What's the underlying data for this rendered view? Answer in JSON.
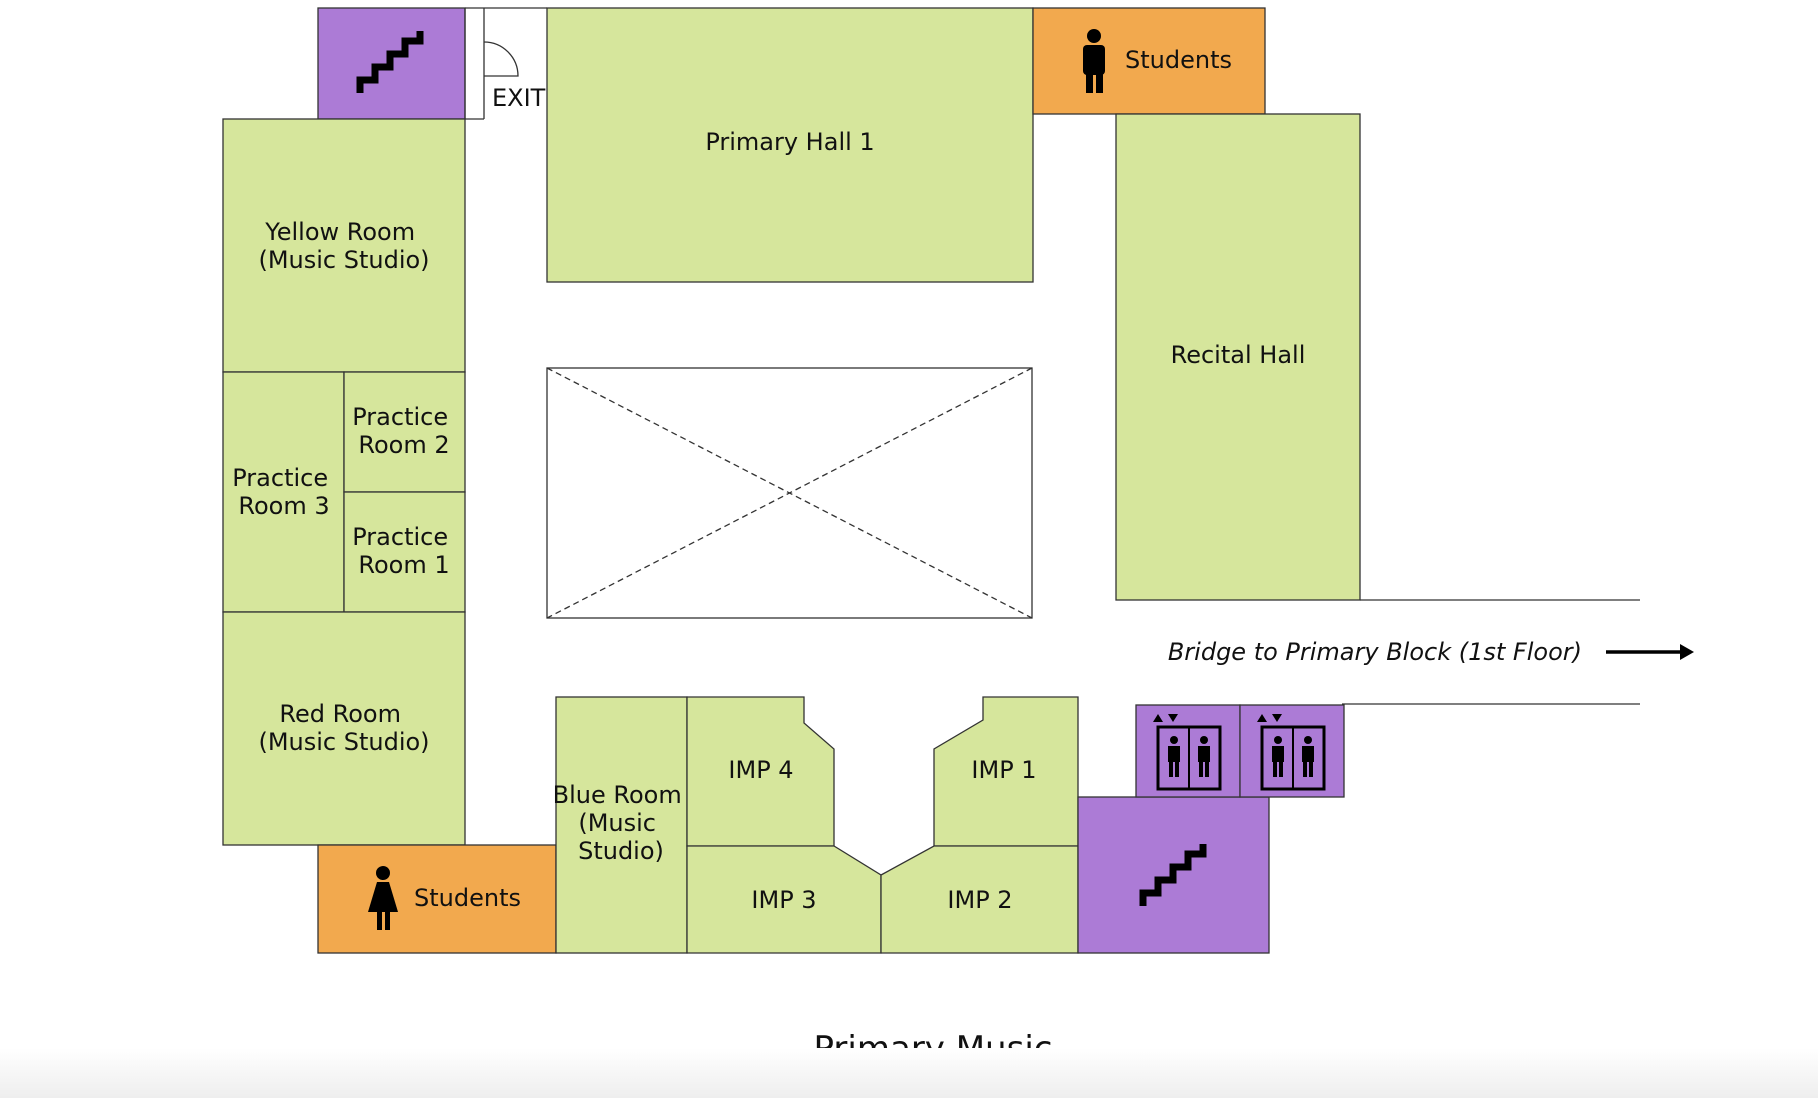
{
  "map": {
    "title": "Primary Music",
    "exit_label": "EXIT",
    "bridge_label": "Bridge to Primary Block (1st Floor)",
    "rooms": {
      "primary_hall_1": "Primary Hall 1",
      "recital_hall": "Recital Hall",
      "yellow_room": [
        "Yellow Room",
        "(Music Studio)"
      ],
      "practice_room_2": [
        "Practice",
        "Room 2"
      ],
      "practice_room_3": [
        "Practice",
        "Room 3"
      ],
      "practice_room_1": [
        "Practice",
        "Room 1"
      ],
      "red_room": [
        "Red Room",
        "(Music Studio)"
      ],
      "blue_room": [
        "Blue Room",
        "(Music",
        "Studio)"
      ],
      "imp_4": "IMP 4",
      "imp_1": "IMP 1",
      "imp_3": "IMP 3",
      "imp_2": "IMP 2",
      "students_male": "Students",
      "students_female": "Students"
    },
    "icons": [
      "stairs-icon",
      "male-person-icon",
      "female-person-icon",
      "elevator-icon",
      "arrow-right-icon"
    ],
    "colors": {
      "room": "#d6e69c",
      "toilet": "#f2a94e",
      "circulation": "#ac7bd6"
    }
  }
}
